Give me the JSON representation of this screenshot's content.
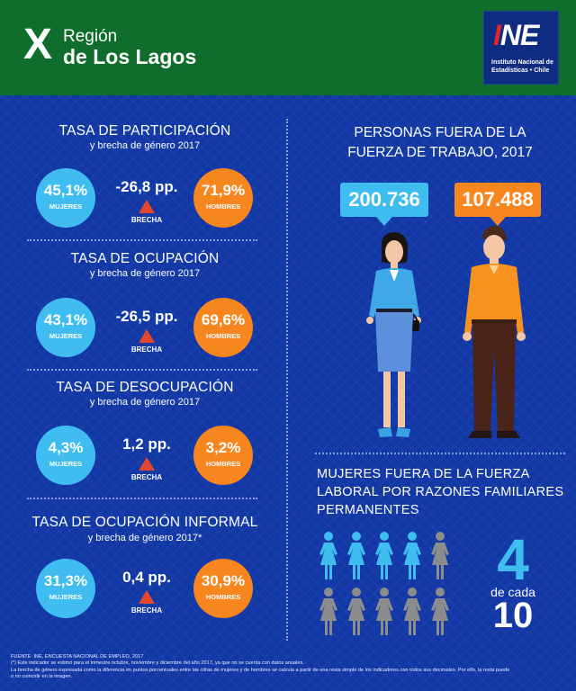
{
  "header": {
    "region_numeral": "X",
    "region_word": "Región",
    "region_name": "de Los Lagos",
    "logo_text": "INE",
    "logo_subtitle": "Instituto Nacional de Estadísticas • Chile"
  },
  "colors": {
    "header_bg": "#0f6e2c",
    "main_bg": "#1238a6",
    "women": "#3fbdf0",
    "men": "#f7861f",
    "gap_triangle": "#e4472b",
    "grey_icon": "#8c8c8c"
  },
  "indicators": [
    {
      "title": "TASA DE PARTICIPACIÓN",
      "subtitle": "y brecha de género 2017",
      "women_value": "45,1%",
      "women_label": "MUJERES",
      "gap_value": "-26,8 pp.",
      "gap_label": "BRECHA",
      "men_value": "71,9%",
      "men_label": "HOMBRES"
    },
    {
      "title": "TASA DE OCUPACIÓN",
      "subtitle": "y brecha de género 2017",
      "women_value": "43,1%",
      "women_label": "MUJERES",
      "gap_value": "-26,5 pp.",
      "gap_label": "BRECHA",
      "men_value": "69,6%",
      "men_label": "HOMBRES"
    },
    {
      "title": "TASA DE DESOCUPACIÓN",
      "subtitle": "y brecha de género 2017",
      "women_value": "4,3%",
      "women_label": "MUJERES",
      "gap_value": "1,2 pp.",
      "gap_label": "BRECHA",
      "men_value": "3,2%",
      "men_label": "HOMBRES"
    },
    {
      "title": "TASA DE OCUPACIÓN INFORMAL",
      "subtitle": "y brecha de género 2017*",
      "women_value": "31,3%",
      "women_label": "MUJERES",
      "gap_value": "0,4 pp.",
      "gap_label": "BRECHA",
      "men_value": "30,9%",
      "men_label": "HOMBRES"
    }
  ],
  "outside_workforce": {
    "title_line1": "PERSONAS FUERA DE LA",
    "title_line2": "FUERZA DE TRABAJO, 2017",
    "women_count": "200.736",
    "men_count": "107.488"
  },
  "family_reasons": {
    "title_line1": "MUJERES FUERA DE LA FUERZA",
    "title_line2": "LABORAL POR RAZONES FAMILIARES",
    "title_line3": "PERMANENTES",
    "highlighted": 4,
    "total": 10,
    "number": "4",
    "connector": "de cada",
    "of_total": "10"
  },
  "footer": {
    "line1": "FUENTE: INE, ENCUESTA NACIONAL DE EMPLEO, 2017",
    "line2": "(*) Este indicador se estimó para el trimestre octubre, noviembre y diciembre del año 2017, ya que no se cuenta con datos anuales.",
    "line3": "La brecha de género expresada como la diferencia en puntos porcentuales entre las cifras de mujeres y de hombres se calcula a partir de una resta simple de los indicadores con todos sus decimales. Por ello, la resta puede",
    "line4": "o no coincidir en la imagen."
  }
}
